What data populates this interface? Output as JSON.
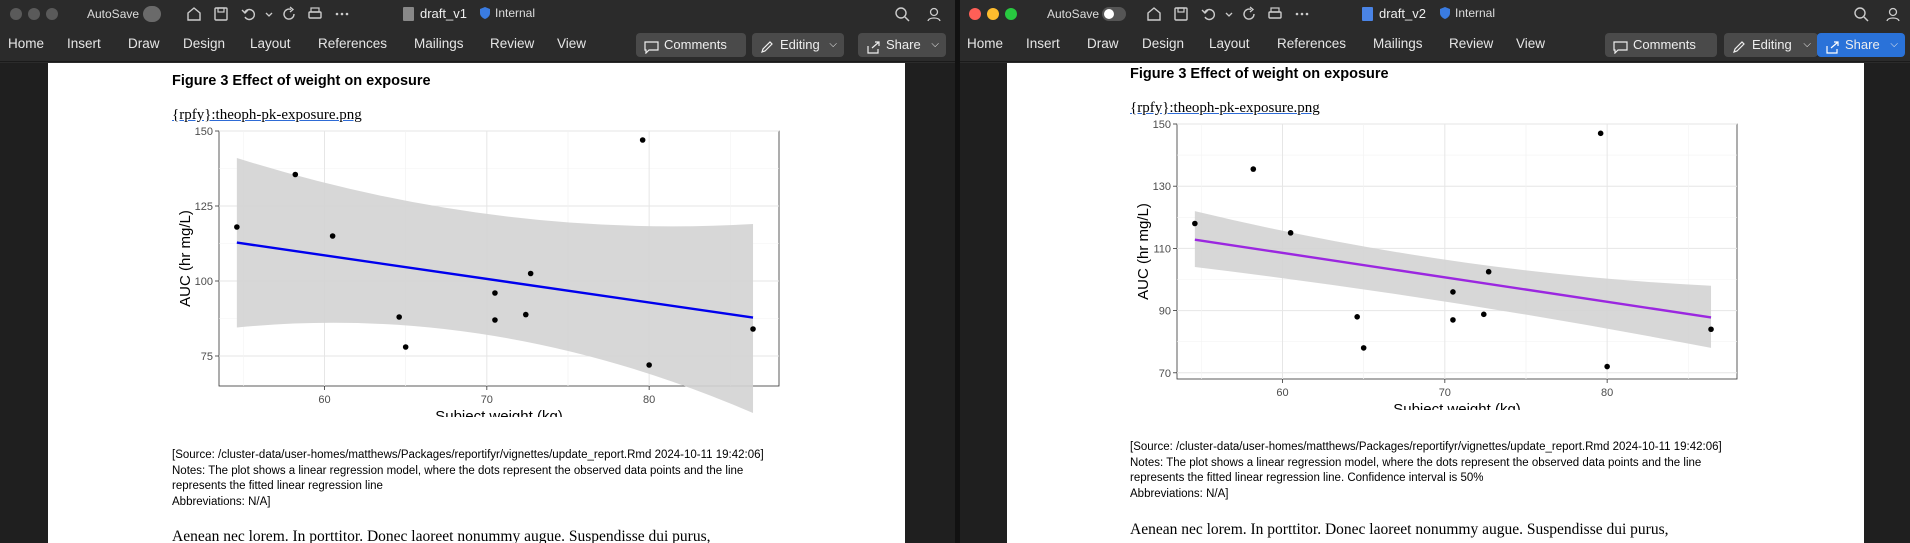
{
  "left": {
    "autosave_label": "AutoSave",
    "doc_name": "draft_v1",
    "sensitivity": "Internal",
    "tabs": [
      "Home",
      "Insert",
      "Draw",
      "Design",
      "Layout",
      "References",
      "Mailings",
      "Review",
      "View"
    ],
    "buttons": {
      "comments": "Comments",
      "editing": "Editing",
      "share": "Share"
    },
    "figure_title": "Figure 3 Effect of weight on exposure",
    "file_ref": "{rpfy}:theoph-pk-exposure.png",
    "source_line": "[Source: /cluster-data/user-homes/matthews/Packages/reportifyr/vignettes/update_report.Rmd 2024-10-11 19:42:06]",
    "notes_line1": "Notes: The plot shows a linear regression model, where the dots represent the observed data points and the line",
    "notes_line2": "represents the fitted linear regression line",
    "abbrev": "Abbreviations: N/A]",
    "body_text": "Aenean nec lorem. In porttitor. Donec laoreet nonummy augue. Suspendisse dui purus,"
  },
  "right": {
    "autosave_label": "AutoSave",
    "doc_name": "draft_v2",
    "sensitivity": "Internal",
    "tabs": [
      "Home",
      "Insert",
      "Draw",
      "Design",
      "Layout",
      "References",
      "Mailings",
      "Review",
      "View"
    ],
    "buttons": {
      "comments": "Comments",
      "editing": "Editing",
      "share": "Share"
    },
    "figure_title": "Figure 3 Effect of weight on exposure",
    "file_ref": "{rpfy}:theoph-pk-exposure.png",
    "source_line": "[Source: /cluster-data/user-homes/matthews/Packages/reportifyr/vignettes/update_report.Rmd 2024-10-11 19:42:06]",
    "notes_line1": "Notes: The plot shows a linear regression model, where the dots represent the observed data points and the line",
    "notes_line2": "represents the fitted linear regression line. Confidence interval is 50%",
    "abbrev": "Abbreviations: N/A]",
    "body_text": "Aenean nec lorem. In porttitor. Donec laoreet nonummy augue. Suspendisse dui purus,"
  },
  "colors": {
    "line_left": "#0000ee",
    "line_right": "#9b27e0",
    "band": "#d3d3d3",
    "share_blue": "#2a72d9"
  },
  "chart_data": [
    {
      "type": "scatter",
      "xlabel": "Subject weight (kg)",
      "ylabel": "AUC (hr mg/L)",
      "xlim": [
        53.5,
        88
      ],
      "ylim": [
        65,
        150
      ],
      "xticks": [
        60,
        70,
        80
      ],
      "yticks": [
        75,
        100,
        125,
        150
      ],
      "grid": true,
      "points": {
        "x": [
          54.6,
          58.2,
          60.5,
          64.6,
          65.0,
          70.5,
          70.5,
          72.4,
          72.7,
          79.6,
          80.0,
          86.4
        ],
        "y": [
          118,
          135.5,
          115,
          88,
          78,
          96,
          87,
          88.8,
          102.5,
          147,
          72,
          84
        ]
      },
      "fit_line": {
        "x": [
          54.6,
          86.4
        ],
        "y": [
          112.8,
          87.8
        ]
      },
      "band": {
        "x": [
          54.6,
          70.5,
          86.4
        ],
        "upper": [
          141,
          114,
          119
        ],
        "lower": [
          84.5,
          93,
          56
        ]
      }
    },
    {
      "type": "scatter",
      "xlabel": "Subject weight (kg)",
      "ylabel": "AUC (hr mg/L)",
      "xlim": [
        53.5,
        88
      ],
      "ylim": [
        68,
        150
      ],
      "xticks": [
        60,
        70,
        80
      ],
      "yticks": [
        70,
        90,
        110,
        130,
        150
      ],
      "grid": true,
      "points": {
        "x": [
          54.6,
          58.2,
          60.5,
          64.6,
          65.0,
          70.5,
          70.5,
          72.4,
          72.7,
          79.6,
          80.0,
          86.4
        ],
        "y": [
          118,
          135.5,
          115,
          88,
          78,
          96,
          87,
          88.8,
          102.5,
          147,
          72,
          84
        ]
      },
      "fit_line": {
        "x": [
          54.6,
          86.4
        ],
        "y": [
          112.8,
          87.8
        ]
      },
      "band": {
        "x": [
          54.6,
          70.5,
          86.4
        ],
        "upper": [
          122,
          102,
          98
        ],
        "lower": [
          104,
          94,
          78
        ]
      }
    }
  ]
}
